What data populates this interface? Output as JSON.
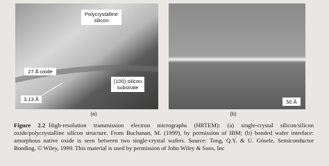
{
  "figure": {
    "panel_a": {
      "labels": [
        "Polycrystalline silicon",
        "27 Å oxide",
        "(100) silicon substrate",
        "3.13 Å"
      ],
      "tag": "(a)"
    },
    "panel_b": {
      "scale": "50 Å",
      "tag": "(b)"
    },
    "caption": {
      "label": "Figure 2.2",
      "text": "High-resolution transmission electron micrographs (HRTEM): (a) single-crystal silicon/silicon oxide/polycrystalline silicon structure. From Buchanan, M. (1999), by permission of IBM; (b) bonded wafer interface: amorphous native oxide is seen between two single-crystal wafers. Source: Tong, Q.Y. & U. Gösele, Semiconductor Bonding, © Wiley, 1999. This material is used by permission of John Wiley & Sons, Inc"
    }
  }
}
